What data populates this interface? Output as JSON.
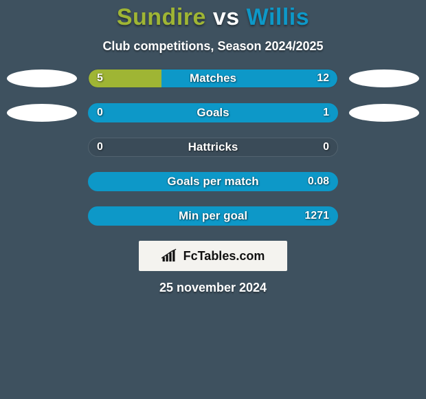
{
  "background_color": "#3e515f",
  "title": {
    "p1": "Sundire",
    "vs": "vs",
    "p2": "Willis",
    "p1_color": "#9fb534",
    "vs_color": "#ffffff",
    "p2_color": "#0d98c8"
  },
  "subtitle": {
    "text": "Club competitions, Season 2024/2025",
    "color": "#ffffff"
  },
  "bar_style": {
    "height": 28,
    "border_radius": 14,
    "label_fontsize": 17,
    "value_fontsize": 16,
    "text_color": "#ffffff"
  },
  "left_color": "#9fb534",
  "right_color": "#0d98c8",
  "neutral_bg": "#3a4b58",
  "neutral_border": "#52636f",
  "rows": [
    {
      "label": "Matches",
      "left": "5",
      "right": "12",
      "left_pct": 29.4,
      "ovals": true
    },
    {
      "label": "Goals",
      "left": "0",
      "right": "1",
      "left_pct": 0,
      "ovals": true
    },
    {
      "label": "Hattricks",
      "left": "0",
      "right": "0",
      "left_pct": 0,
      "ovals": false
    },
    {
      "label": "Goals per match",
      "left": "",
      "right": "0.08",
      "left_pct": 0,
      "ovals": false
    },
    {
      "label": "Min per goal",
      "left": "",
      "right": "1271",
      "left_pct": 0,
      "ovals": false
    }
  ],
  "brand": {
    "text": "FcTables.com"
  },
  "date": {
    "text": "25 november 2024"
  }
}
